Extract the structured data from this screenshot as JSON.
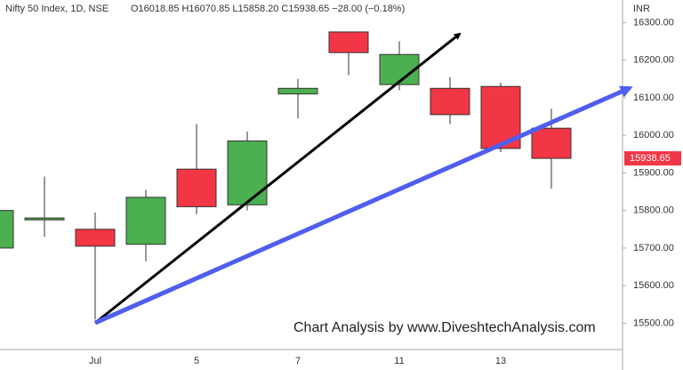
{
  "chart_data": {
    "type": "candlestick",
    "title": "Nifty 50 Index, 1D, NSE",
    "subtitle": "O16018.85 H16070.85 L15858.20 C15938.65 −28.00 (−0.18%)",
    "y_label": "INR",
    "annotation": "Chart Analysis by www.DiveshtechAnalysis.com",
    "categories": [
      null,
      null,
      "Jul",
      null,
      "5",
      null,
      "7",
      null,
      "11",
      null,
      "13",
      null
    ],
    "open": [
      15700,
      15775,
      15750,
      15710,
      15910,
      15815,
      16110,
      16275,
      16135,
      16125,
      16130,
      16018.85
    ],
    "high": [
      15800,
      15890,
      15795,
      15855,
      16030,
      16010,
      16150,
      16275,
      16250,
      16155,
      16140,
      16070.85
    ],
    "low": [
      15690,
      15730,
      15510,
      15665,
      15790,
      15800,
      16045,
      16160,
      16120,
      16030,
      15955,
      15858.2
    ],
    "close": [
      15800,
      15780,
      15705,
      15835,
      15810,
      15985,
      16125,
      16220,
      16215,
      16055,
      15965,
      15938.65
    ],
    "up_color": "#4caf50",
    "down_color": "#f23645",
    "last_price": 15938.65,
    "ylim": [
      15430,
      16360
    ],
    "yticks": [
      {
        "value": 15500,
        "label": "15500.00"
      },
      {
        "value": 15600,
        "label": "15600.00"
      },
      {
        "value": 15700,
        "label": "15700.00"
      },
      {
        "value": 15800,
        "label": "15800.00"
      },
      {
        "value": 15900,
        "label": "15900.00"
      },
      {
        "value": 16000,
        "label": "16000.00"
      },
      {
        "value": 16100,
        "label": "16100.00"
      },
      {
        "value": 16200,
        "label": "16200.00"
      },
      {
        "value": 16300,
        "label": "16300.00"
      }
    ],
    "grid": false
  }
}
